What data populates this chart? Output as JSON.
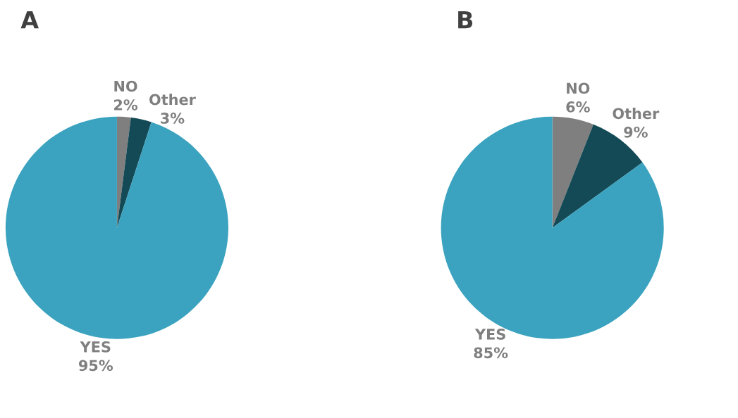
{
  "chart_data": [
    {
      "type": "pie",
      "title": "A",
      "categories": [
        "NO",
        "Other",
        "YES"
      ],
      "values": [
        2,
        3,
        95
      ],
      "colors": [
        "#7f7f7f",
        "#134a56",
        "#3ba3bf"
      ],
      "value_labels": [
        "2%",
        "3%",
        "95%"
      ]
    },
    {
      "type": "pie",
      "title": "B",
      "categories": [
        "NO",
        "Other",
        "YES"
      ],
      "values": [
        6,
        9,
        85
      ],
      "colors": [
        "#7f7f7f",
        "#134a56",
        "#3ba3bf"
      ],
      "value_labels": [
        "6%",
        "9%",
        "85%"
      ]
    }
  ]
}
